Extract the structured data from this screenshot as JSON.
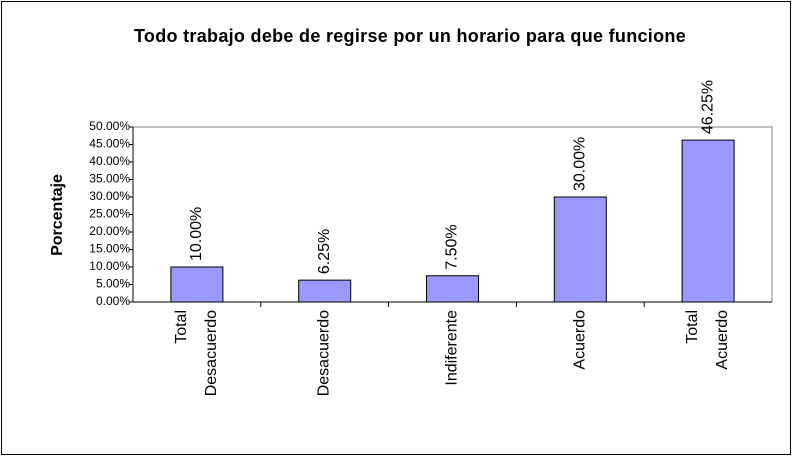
{
  "chart_data": {
    "type": "bar",
    "title": "Todo trabajo debe de regirse por un horario para que funcione",
    "y_label": "Porcentaje",
    "categories": [
      "Total Desacuerdo",
      "Desacuerdo",
      "Indiferente",
      "Acuerdo",
      "Total Acuerdo"
    ],
    "values": [
      10,
      6.25,
      7.5,
      30,
      46.25
    ],
    "value_labels": [
      "10.00%",
      "6.25%",
      "7.50%",
      "30.00%",
      "46.25%"
    ],
    "color": "#9999ff",
    "ylim": [
      0,
      50
    ],
    "yticks": [
      {
        "value": 0,
        "label": "0.00%"
      },
      {
        "value": 5,
        "label": "5.00%"
      },
      {
        "value": 10,
        "label": "10.00%"
      },
      {
        "value": 15,
        "label": "15.00%"
      },
      {
        "value": 20,
        "label": "20.00%"
      },
      {
        "value": 25,
        "label": "25.00%"
      },
      {
        "value": 30,
        "label": "30.00%"
      },
      {
        "value": 35,
        "label": "35.00%"
      },
      {
        "value": 40,
        "label": "40.00%"
      },
      {
        "value": 45,
        "label": "45.00%"
      },
      {
        "value": 50,
        "label": "50.00%"
      }
    ],
    "grid": false
  }
}
